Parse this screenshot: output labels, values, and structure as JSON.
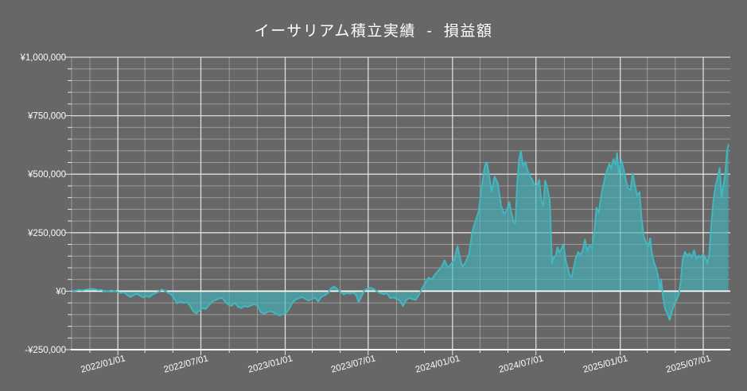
{
  "page": {
    "background_color": "#676767",
    "text_color": "#ffffff"
  },
  "header": {
    "title": "イーサリアム積立実績  -  損益額"
  },
  "chart_data": {
    "type": "area",
    "title": "イーサリアム積立実績  -  損益額",
    "series_name": "損益額",
    "currency": "JPY",
    "legend": "none",
    "grid": "on",
    "colors": {
      "background": "#676767",
      "line": "#41b7bf",
      "fill": "rgba(64,183,191,0.62)",
      "grid_minor": "rgba(255,255,255,0.33)",
      "grid_major": "rgba(255,255,255,0.78)",
      "axis": "#ffffff",
      "text": "#fafafa"
    },
    "y_axis": {
      "min": -250000,
      "max": 1000000,
      "minor_step": 50000,
      "major_step": 250000,
      "major_ticks": [
        {
          "value": 1000000,
          "label": "¥1,000,000"
        },
        {
          "value": 750000,
          "label": "¥750,000"
        },
        {
          "value": 500000,
          "label": "¥500,000"
        },
        {
          "value": 250000,
          "label": "¥250,000"
        },
        {
          "value": 0,
          "label": "¥0"
        },
        {
          "value": -250000,
          "label": "-¥250,000"
        }
      ]
    },
    "x_axis": {
      "start": "2021-09-22",
      "end": "2025-08-29",
      "grid_start": "2021-11-01",
      "minor_step_months": 2,
      "major_ticks": [
        {
          "date": "2022-01-01",
          "label": "2022/01/01"
        },
        {
          "date": "2022-07-01",
          "label": "2022/07/01"
        },
        {
          "date": "2023-01-01",
          "label": "2023/01/01"
        },
        {
          "date": "2023-07-01",
          "label": "2023/07/01"
        },
        {
          "date": "2024-01-01",
          "label": "2024/01/01"
        },
        {
          "date": "2024-07-01",
          "label": "2024/07/01"
        },
        {
          "date": "2025-01-01",
          "label": "2025/01/01"
        },
        {
          "date": "2025-07-01",
          "label": "2025/07/01"
        }
      ]
    },
    "points": [
      [
        "2021-09-24",
        0
      ],
      [
        "2021-10-01",
        2000
      ],
      [
        "2021-10-08",
        5000
      ],
      [
        "2021-10-15",
        3000
      ],
      [
        "2021-10-22",
        6000
      ],
      [
        "2021-10-29",
        8000
      ],
      [
        "2021-11-05",
        10000
      ],
      [
        "2021-11-12",
        8000
      ],
      [
        "2021-11-19",
        4000
      ],
      [
        "2021-11-26",
        6000
      ],
      [
        "2021-12-03",
        -2000
      ],
      [
        "2021-12-10",
        1000
      ],
      [
        "2021-12-17",
        -3000
      ],
      [
        "2021-12-24",
        0
      ],
      [
        "2021-12-31",
        -3000
      ],
      [
        "2022-01-07",
        -7000
      ],
      [
        "2022-01-14",
        -5000
      ],
      [
        "2022-01-21",
        -15000
      ],
      [
        "2022-01-28",
        -25000
      ],
      [
        "2022-02-04",
        -17000
      ],
      [
        "2022-02-11",
        -11000
      ],
      [
        "2022-02-18",
        -19000
      ],
      [
        "2022-02-25",
        -27000
      ],
      [
        "2022-03-04",
        -21000
      ],
      [
        "2022-03-11",
        -25000
      ],
      [
        "2022-03-18",
        -14000
      ],
      [
        "2022-03-25",
        -7000
      ],
      [
        "2022-04-01",
        -2000
      ],
      [
        "2022-04-06",
        7000
      ],
      [
        "2022-04-12",
        3000
      ],
      [
        "2022-04-19",
        -5000
      ],
      [
        "2022-04-26",
        -13000
      ],
      [
        "2022-05-03",
        -28000
      ],
      [
        "2022-05-10",
        -52000
      ],
      [
        "2022-05-17",
        -44000
      ],
      [
        "2022-05-24",
        -50000
      ],
      [
        "2022-05-31",
        -47000
      ],
      [
        "2022-06-07",
        -60000
      ],
      [
        "2022-06-14",
        -85000
      ],
      [
        "2022-06-21",
        -95000
      ],
      [
        "2022-06-28",
        -82000
      ],
      [
        "2022-07-05",
        -73000
      ],
      [
        "2022-07-12",
        -76000
      ],
      [
        "2022-07-19",
        -58000
      ],
      [
        "2022-07-26",
        -44000
      ],
      [
        "2022-08-02",
        -38000
      ],
      [
        "2022-08-09",
        -32000
      ],
      [
        "2022-08-16",
        -28000
      ],
      [
        "2022-08-23",
        -45000
      ],
      [
        "2022-08-30",
        -58000
      ],
      [
        "2022-09-06",
        -62000
      ],
      [
        "2022-09-13",
        -50000
      ],
      [
        "2022-09-20",
        -67000
      ],
      [
        "2022-09-27",
        -72000
      ],
      [
        "2022-10-04",
        -64000
      ],
      [
        "2022-10-11",
        -67000
      ],
      [
        "2022-10-18",
        -61000
      ],
      [
        "2022-10-25",
        -56000
      ],
      [
        "2022-11-01",
        -60000
      ],
      [
        "2022-11-08",
        -88000
      ],
      [
        "2022-11-15",
        -96000
      ],
      [
        "2022-11-22",
        -90000
      ],
      [
        "2022-11-29",
        -86000
      ],
      [
        "2022-12-06",
        -90000
      ],
      [
        "2022-12-13",
        -97000
      ],
      [
        "2022-12-20",
        -104000
      ],
      [
        "2022-12-27",
        -99000
      ],
      [
        "2023-01-03",
        -92000
      ],
      [
        "2023-01-10",
        -74000
      ],
      [
        "2023-01-17",
        -48000
      ],
      [
        "2023-01-24",
        -36000
      ],
      [
        "2023-01-31",
        -30000
      ],
      [
        "2023-02-07",
        -25000
      ],
      [
        "2023-02-14",
        -33000
      ],
      [
        "2023-02-21",
        -40000
      ],
      [
        "2023-02-28",
        -34000
      ],
      [
        "2023-03-07",
        -28000
      ],
      [
        "2023-03-14",
        -44000
      ],
      [
        "2023-03-21",
        -24000
      ],
      [
        "2023-03-28",
        -18000
      ],
      [
        "2023-04-04",
        -8000
      ],
      [
        "2023-04-11",
        12000
      ],
      [
        "2023-04-18",
        20000
      ],
      [
        "2023-04-25",
        8000
      ],
      [
        "2023-05-02",
        -4000
      ],
      [
        "2023-05-09",
        -14000
      ],
      [
        "2023-05-16",
        -7000
      ],
      [
        "2023-05-23",
        -11000
      ],
      [
        "2023-05-30",
        -6000
      ],
      [
        "2023-06-06",
        -20000
      ],
      [
        "2023-06-10",
        -48000
      ],
      [
        "2023-06-16",
        -22000
      ],
      [
        "2023-06-23",
        4000
      ],
      [
        "2023-06-30",
        11000
      ],
      [
        "2023-07-07",
        14000
      ],
      [
        "2023-07-14",
        8000
      ],
      [
        "2023-07-21",
        -2000
      ],
      [
        "2023-07-28",
        -9000
      ],
      [
        "2023-08-04",
        -13000
      ],
      [
        "2023-08-11",
        -9000
      ],
      [
        "2023-08-18",
        -30000
      ],
      [
        "2023-08-25",
        -27000
      ],
      [
        "2023-09-01",
        -33000
      ],
      [
        "2023-09-08",
        -40000
      ],
      [
        "2023-09-15",
        -64000
      ],
      [
        "2023-09-22",
        -38000
      ],
      [
        "2023-09-29",
        -29000
      ],
      [
        "2023-10-06",
        -34000
      ],
      [
        "2023-10-13",
        -37000
      ],
      [
        "2023-10-20",
        -14000
      ],
      [
        "2023-10-27",
        13000
      ],
      [
        "2023-11-03",
        36000
      ],
      [
        "2023-11-10",
        58000
      ],
      [
        "2023-11-17",
        50000
      ],
      [
        "2023-11-24",
        72000
      ],
      [
        "2023-12-01",
        88000
      ],
      [
        "2023-12-08",
        104000
      ],
      [
        "2023-12-15",
        132000
      ],
      [
        "2023-12-22",
        100000
      ],
      [
        "2023-12-29",
        117000
      ],
      [
        "2024-01-05",
        136000
      ],
      [
        "2024-01-12",
        192000
      ],
      [
        "2024-01-19",
        128000
      ],
      [
        "2024-01-23",
        102000
      ],
      [
        "2024-01-30",
        126000
      ],
      [
        "2024-02-06",
        160000
      ],
      [
        "2024-02-13",
        252000
      ],
      [
        "2024-02-20",
        300000
      ],
      [
        "2024-02-27",
        340000
      ],
      [
        "2024-03-05",
        450000
      ],
      [
        "2024-03-09",
        505000
      ],
      [
        "2024-03-13",
        545000
      ],
      [
        "2024-03-16",
        551000
      ],
      [
        "2024-03-21",
        493000
      ],
      [
        "2024-03-26",
        425000
      ],
      [
        "2024-04-02",
        490000
      ],
      [
        "2024-04-09",
        460000
      ],
      [
        "2024-04-16",
        364000
      ],
      [
        "2024-04-23",
        330000
      ],
      [
        "2024-04-29",
        350000
      ],
      [
        "2024-05-04",
        380000
      ],
      [
        "2024-05-09",
        330000
      ],
      [
        "2024-05-14",
        295000
      ],
      [
        "2024-05-17",
        289000
      ],
      [
        "2024-05-21",
        459000
      ],
      [
        "2024-05-25",
        560000
      ],
      [
        "2024-05-29",
        600000
      ],
      [
        "2024-06-03",
        535000
      ],
      [
        "2024-06-08",
        552000
      ],
      [
        "2024-06-13",
        515000
      ],
      [
        "2024-06-18",
        492000
      ],
      [
        "2024-06-23",
        476000
      ],
      [
        "2024-06-28",
        452000
      ],
      [
        "2024-07-03",
        449000
      ],
      [
        "2024-07-08",
        476000
      ],
      [
        "2024-07-13",
        385000
      ],
      [
        "2024-07-17",
        362000
      ],
      [
        "2024-07-21",
        473000
      ],
      [
        "2024-07-26",
        440000
      ],
      [
        "2024-07-31",
        391000
      ],
      [
        "2024-08-05",
        119000
      ],
      [
        "2024-08-09",
        145000
      ],
      [
        "2024-08-13",
        152000
      ],
      [
        "2024-08-17",
        187000
      ],
      [
        "2024-08-21",
        166000
      ],
      [
        "2024-08-26",
        183000
      ],
      [
        "2024-08-30",
        201000
      ],
      [
        "2024-09-04",
        133000
      ],
      [
        "2024-09-09",
        95000
      ],
      [
        "2024-09-13",
        66000
      ],
      [
        "2024-09-17",
        58000
      ],
      [
        "2024-09-21",
        99000
      ],
      [
        "2024-09-26",
        142000
      ],
      [
        "2024-10-01",
        167000
      ],
      [
        "2024-10-06",
        154000
      ],
      [
        "2024-10-11",
        176000
      ],
      [
        "2024-10-16",
        221000
      ],
      [
        "2024-10-21",
        172000
      ],
      [
        "2024-10-26",
        196000
      ],
      [
        "2024-10-31",
        185000
      ],
      [
        "2024-11-05",
        245000
      ],
      [
        "2024-11-10",
        357000
      ],
      [
        "2024-11-15",
        336000
      ],
      [
        "2024-11-21",
        415000
      ],
      [
        "2024-11-27",
        472000
      ],
      [
        "2024-12-03",
        517000
      ],
      [
        "2024-12-08",
        545000
      ],
      [
        "2024-12-12",
        522000
      ],
      [
        "2024-12-17",
        565000
      ],
      [
        "2024-12-22",
        540000
      ],
      [
        "2024-12-25",
        591000
      ],
      [
        "2024-12-29",
        502000
      ],
      [
        "2025-01-03",
        561000
      ],
      [
        "2025-01-08",
        524000
      ],
      [
        "2025-01-13",
        478000
      ],
      [
        "2025-01-18",
        440000
      ],
      [
        "2025-01-23",
        432000
      ],
      [
        "2025-01-28",
        503000
      ],
      [
        "2025-02-02",
        452000
      ],
      [
        "2025-02-07",
        408000
      ],
      [
        "2025-02-12",
        424000
      ],
      [
        "2025-02-16",
        320000
      ],
      [
        "2025-02-21",
        238000
      ],
      [
        "2025-02-26",
        208000
      ],
      [
        "2025-03-03",
        192000
      ],
      [
        "2025-03-07",
        226000
      ],
      [
        "2025-03-11",
        162000
      ],
      [
        "2025-03-16",
        120000
      ],
      [
        "2025-03-20",
        99000
      ],
      [
        "2025-03-24",
        68000
      ],
      [
        "2025-03-28",
        7000
      ],
      [
        "2025-03-31",
        51000
      ],
      [
        "2025-04-04",
        -22000
      ],
      [
        "2025-04-09",
        -78000
      ],
      [
        "2025-04-14",
        -96000
      ],
      [
        "2025-04-19",
        -123000
      ],
      [
        "2025-04-24",
        -84000
      ],
      [
        "2025-04-29",
        -56000
      ],
      [
        "2025-05-04",
        -38000
      ],
      [
        "2025-05-09",
        -12000
      ],
      [
        "2025-05-13",
        45000
      ],
      [
        "2025-05-17",
        136000
      ],
      [
        "2025-05-22",
        168000
      ],
      [
        "2025-05-27",
        150000
      ],
      [
        "2025-06-01",
        162000
      ],
      [
        "2025-06-06",
        145000
      ],
      [
        "2025-06-11",
        175000
      ],
      [
        "2025-06-16",
        138000
      ],
      [
        "2025-06-21",
        152000
      ],
      [
        "2025-06-26",
        145000
      ],
      [
        "2025-07-01",
        160000
      ],
      [
        "2025-07-06",
        142000
      ],
      [
        "2025-07-10",
        118000
      ],
      [
        "2025-07-14",
        158000
      ],
      [
        "2025-07-18",
        272000
      ],
      [
        "2025-07-23",
        387000
      ],
      [
        "2025-07-28",
        452000
      ],
      [
        "2025-08-02",
        490000
      ],
      [
        "2025-08-06",
        527000
      ],
      [
        "2025-08-10",
        400000
      ],
      [
        "2025-08-14",
        455000
      ],
      [
        "2025-08-18",
        502000
      ],
      [
        "2025-08-22",
        602000
      ],
      [
        "2025-08-25",
        625000
      ]
    ]
  }
}
